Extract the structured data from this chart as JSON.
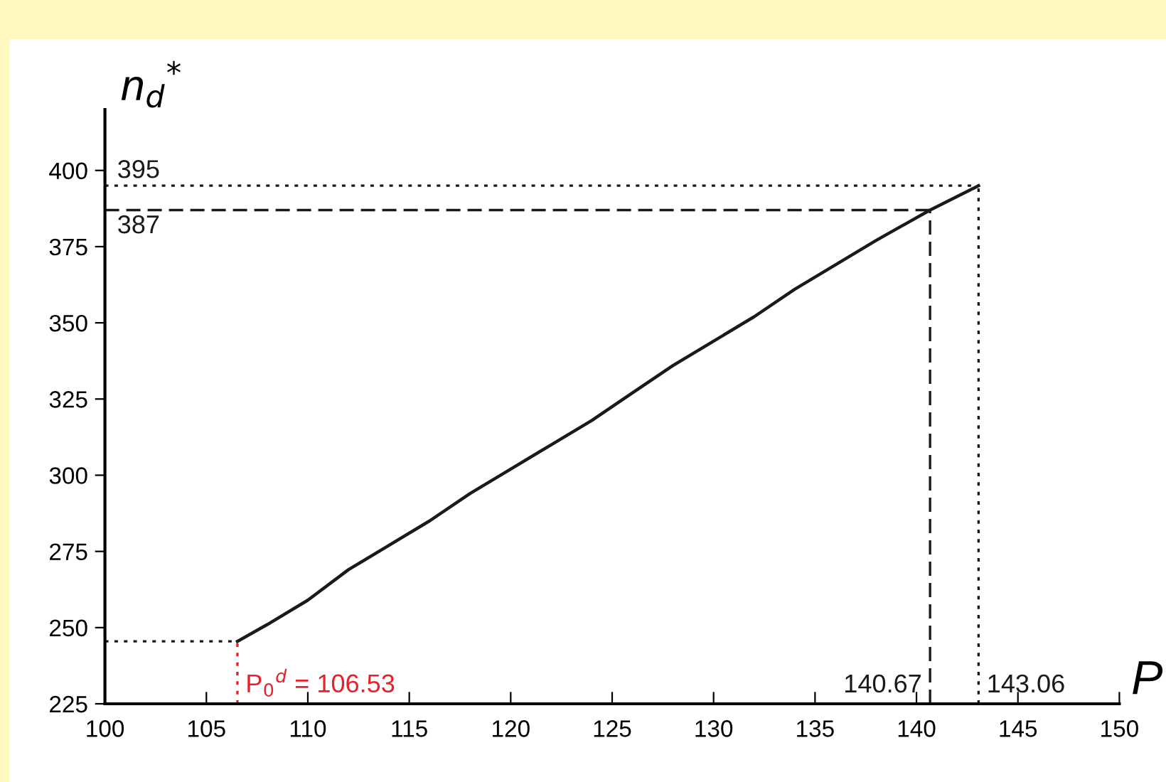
{
  "chart_data": {
    "type": "line",
    "xlabel": "P",
    "ylabel": "n$_{d}$$^{*}$",
    "x": [
      106.53,
      108,
      110,
      112,
      114,
      116,
      118,
      120,
      122,
      124,
      126,
      128,
      130,
      132,
      134,
      136,
      138,
      140.67,
      143.06
    ],
    "series": [
      {
        "color": "#1a1a1a",
        "values": [
          245.5,
          251,
          259,
          269,
          277,
          285,
          294,
          302,
          310,
          318,
          327,
          336,
          344,
          352,
          361,
          369,
          377,
          387,
          395
        ]
      }
    ],
    "xlim": [
      100,
      150
    ],
    "ylim": [
      225,
      420
    ],
    "xticks": [
      100,
      105,
      110,
      115,
      120,
      125,
      130,
      135,
      140,
      145,
      150
    ],
    "yticks": [
      225,
      250,
      275,
      300,
      325,
      350,
      375,
      400
    ],
    "ref_lines": [
      {
        "axis": "y",
        "value": 395,
        "label": "395",
        "line_style": "dotted",
        "color": "#1a1a1a"
      },
      {
        "axis": "y",
        "value": 387,
        "label": "387",
        "line_style": "dashed",
        "color": "#1a1a1a"
      },
      {
        "axis": "y",
        "value": 245.5,
        "line_style": "dotted",
        "color": "#1a1a1a"
      },
      {
        "axis": "x",
        "value": 106.53,
        "label": "P$_{0}$$^{d}$ = 106.53",
        "line_style": "dotted",
        "color": "#e8202a"
      },
      {
        "axis": "x",
        "value": 140.67,
        "label": "140.67",
        "line_style": "dashed",
        "color": "#1a1a1a"
      },
      {
        "axis": "x",
        "value": 143.06,
        "label": "143.06",
        "line_style": "dotted",
        "color": "#1a1a1a"
      }
    ],
    "grid": false,
    "legend": false,
    "line_style": "solid",
    "marker": "none"
  }
}
